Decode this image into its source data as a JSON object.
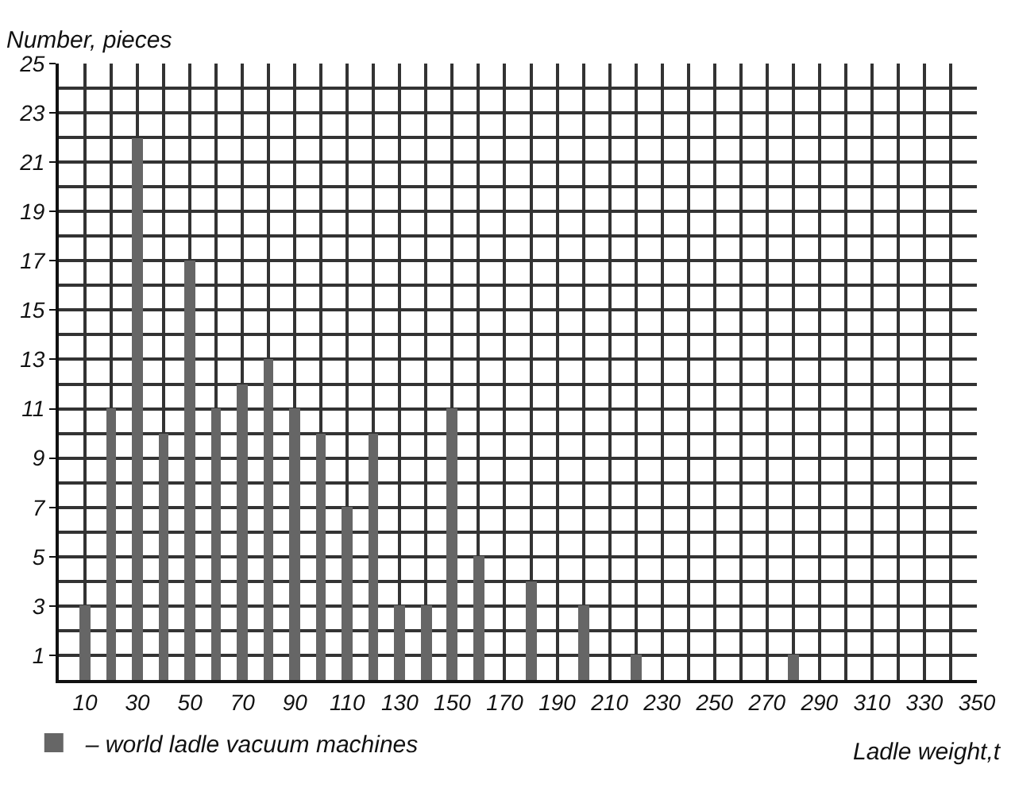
{
  "chart_data": {
    "type": "bar",
    "xlabel": "Ladle weight,t",
    "ylabel": "Number, pieces",
    "x": [
      10,
      20,
      30,
      40,
      50,
      60,
      70,
      80,
      90,
      100,
      110,
      120,
      130,
      140,
      150,
      160,
      180,
      200,
      220,
      280
    ],
    "series": [
      {
        "name": "– world ladle vacuum machines",
        "color": "#666666",
        "values": [
          3,
          11,
          22,
          10,
          17,
          11,
          12,
          13,
          11,
          10,
          7,
          10,
          3,
          3,
          11,
          5,
          4,
          3,
          1,
          1
        ]
      }
    ],
    "xlim": [
      0,
      350
    ],
    "xticks": [
      10,
      30,
      50,
      70,
      90,
      110,
      130,
      150,
      170,
      190,
      210,
      230,
      250,
      270,
      290,
      310,
      330,
      350
    ],
    "ylim": [
      0,
      25
    ],
    "yticks": [
      1,
      3,
      5,
      7,
      9,
      11,
      13,
      15,
      17,
      19,
      21,
      23,
      25
    ],
    "grid": true,
    "legend": "bottom left"
  }
}
